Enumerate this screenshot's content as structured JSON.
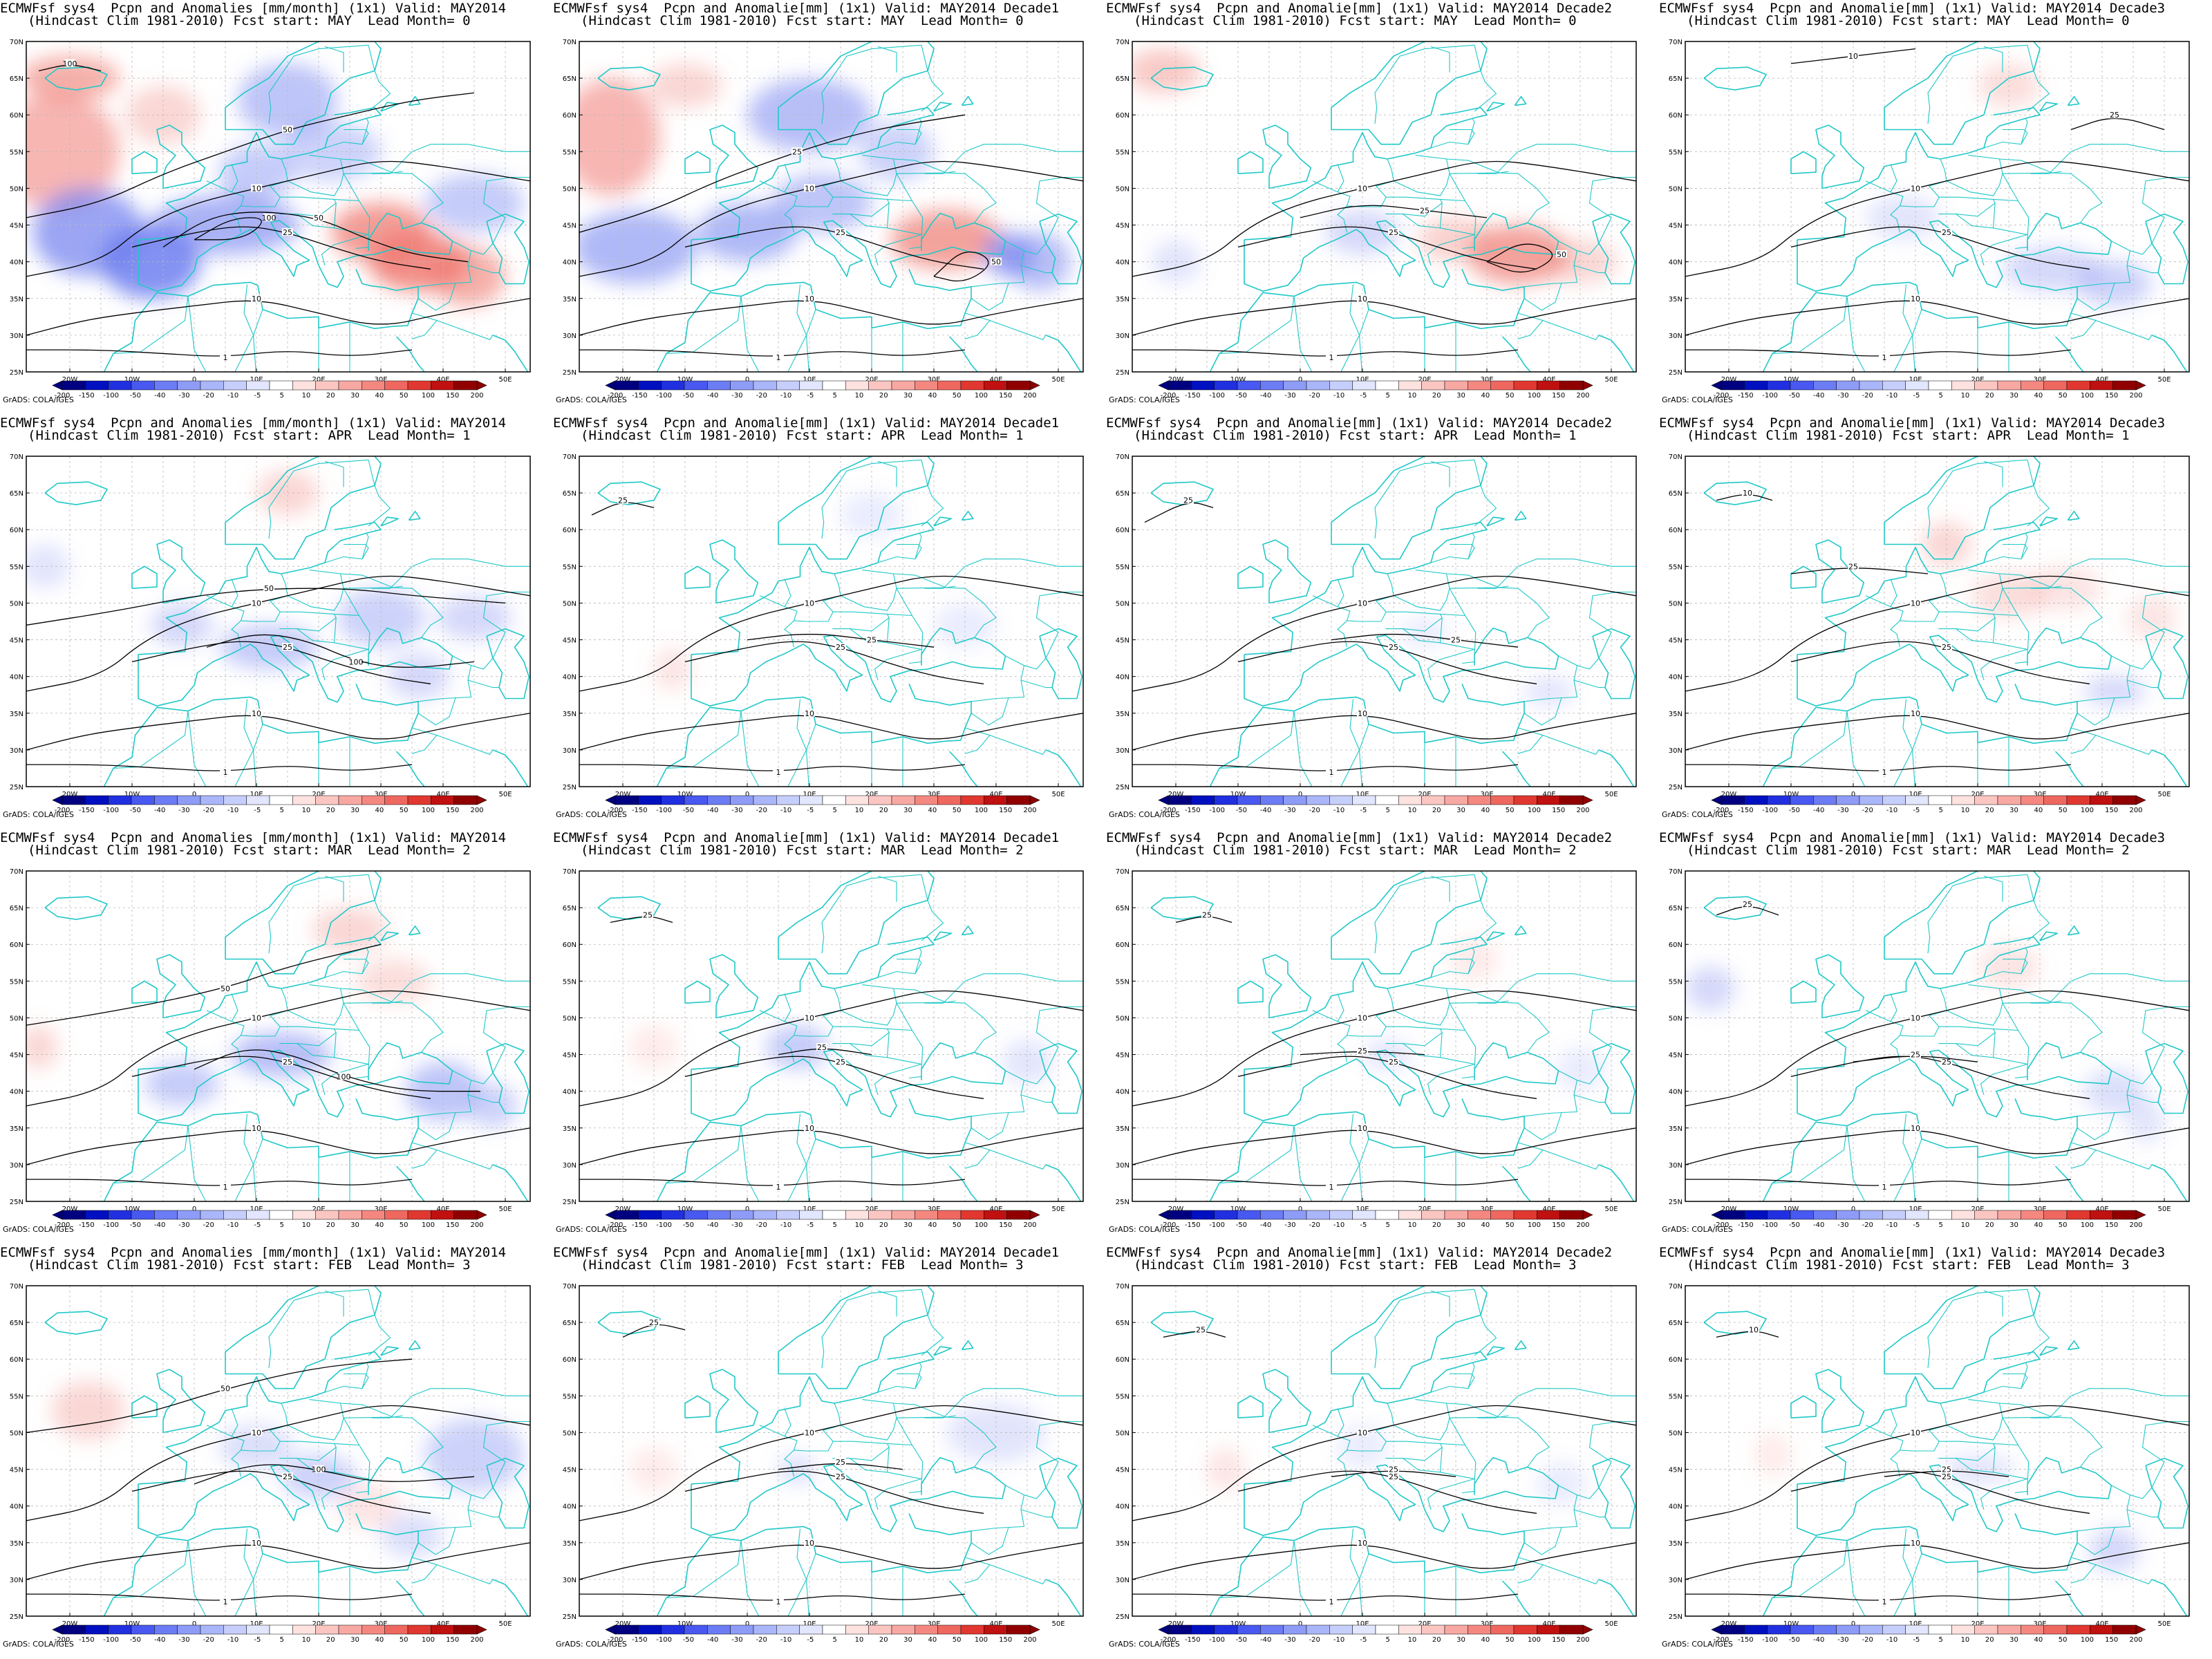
{
  "figure": {
    "colorbar_levels": [
      "-200",
      "-150",
      "-100",
      "-50",
      "-40",
      "-30",
      "-20",
      "-10",
      "-5",
      "5",
      "10",
      "20",
      "30",
      "40",
      "50",
      "100",
      "150",
      "200"
    ],
    "colorbar_colors": [
      "#000080",
      "#0010c0",
      "#2030e0",
      "#4858f0",
      "#6c7cf4",
      "#8e9cf8",
      "#aab6fa",
      "#c6cefc",
      "#e2e6fe",
      "#ffffff",
      "#fde2e0",
      "#fbc6c2",
      "#f8a8a2",
      "#f48880",
      "#ef6860",
      "#e03830",
      "#c01010",
      "#900000"
    ],
    "lat_labels": [
      "70N",
      "65N",
      "60N",
      "55N",
      "50N",
      "45N",
      "40N",
      "35N",
      "30N",
      "25N"
    ],
    "lon_labels": [
      "20W",
      "10W",
      "0",
      "10E",
      "20E",
      "30E",
      "40E",
      "50E"
    ],
    "credit": "GrADS: COLA/IGES",
    "coast_color": "#20c8c8",
    "contour_color": "#000000",
    "anom_pos_color": "#f07a72",
    "anom_neg_color": "#6f7ff0"
  },
  "panels": [
    {
      "title1": "ECMWFsf sys4  Pcpn and Anomalies [mm/month] (1x1) Valid: MAY2014",
      "title2": "(Hindcast Clim 1981-2010) Fcst start: MAY  Lead Month= 0"
    },
    {
      "title1": "ECMWFsf sys4  Pcpn and Anomalie[mm] (1x1) Valid: MAY2014 Decade1",
      "title2": "(Hindcast Clim 1981-2010) Fcst start: MAY  Lead Month= 0"
    },
    {
      "title1": "ECMWFsf sys4  Pcpn and Anomalie[mm] (1x1) Valid: MAY2014 Decade2",
      "title2": "(Hindcast Clim 1981-2010) Fcst start: MAY  Lead Month= 0"
    },
    {
      "title1": "ECMWFsf sys4  Pcpn and Anomalie[mm] (1x1) Valid: MAY2014 Decade3",
      "title2": "(Hindcast Clim 1981-2010) Fcst start: MAY  Lead Month= 0"
    },
    {
      "title1": "ECMWFsf sys4  Pcpn and Anomalies [mm/month] (1x1) Valid: MAY2014",
      "title2": "(Hindcast Clim 1981-2010) Fcst start: APR  Lead Month= 1"
    },
    {
      "title1": "ECMWFsf sys4  Pcpn and Anomalie[mm] (1x1) Valid: MAY2014 Decade1",
      "title2": "(Hindcast Clim 1981-2010) Fcst start: APR  Lead Month= 1"
    },
    {
      "title1": "ECMWFsf sys4  Pcpn and Anomalie[mm] (1x1) Valid: MAY2014 Decade2",
      "title2": "(Hindcast Clim 1981-2010) Fcst start: APR  Lead Month= 1"
    },
    {
      "title1": "ECMWFsf sys4  Pcpn and Anomalie[mm] (1x1) Valid: MAY2014 Decade3",
      "title2": "(Hindcast Clim 1981-2010) Fcst start: APR  Lead Month= 1"
    },
    {
      "title1": "ECMWFsf sys4  Pcpn and Anomalies [mm/month] (1x1) Valid: MAY2014",
      "title2": "(Hindcast Clim 1981-2010) Fcst start: MAR  Lead Month= 2"
    },
    {
      "title1": "ECMWFsf sys4  Pcpn and Anomalie[mm] (1x1) Valid: MAY2014 Decade1",
      "title2": "(Hindcast Clim 1981-2010) Fcst start: MAR  Lead Month= 2"
    },
    {
      "title1": "ECMWFsf sys4  Pcpn and Anomalie[mm] (1x1) Valid: MAY2014 Decade2",
      "title2": "(Hindcast Clim 1981-2010) Fcst start: MAR  Lead Month= 2"
    },
    {
      "title1": "ECMWFsf sys4  Pcpn and Anomalie[mm] (1x1) Valid: MAY2014 Decade3",
      "title2": "(Hindcast Clim 1981-2010) Fcst start: MAR  Lead Month= 2"
    },
    {
      "title1": "ECMWFsf sys4  Pcpn and Anomalies [mm/month] (1x1) Valid: MAY2014",
      "title2": "(Hindcast Clim 1981-2010) Fcst start: FEB  Lead Month= 3"
    },
    {
      "title1": "ECMWFsf sys4  Pcpn and Anomalie[mm] (1x1) Valid: MAY2014 Decade1",
      "title2": "(Hindcast Clim 1981-2010) Fcst start: FEB  Lead Month= 3"
    },
    {
      "title1": "ECMWFsf sys4  Pcpn and Anomalie[mm] (1x1) Valid: MAY2014 Decade2",
      "title2": "(Hindcast Clim 1981-2010) Fcst start: FEB  Lead Month= 3"
    },
    {
      "title1": "ECMWFsf sys4  Pcpn and Anomalie[mm] (1x1) Valid: MAY2014 Decade3",
      "title2": "(Hindcast Clim 1981-2010) Fcst start: FEB  Lead Month= 3"
    }
  ]
}
